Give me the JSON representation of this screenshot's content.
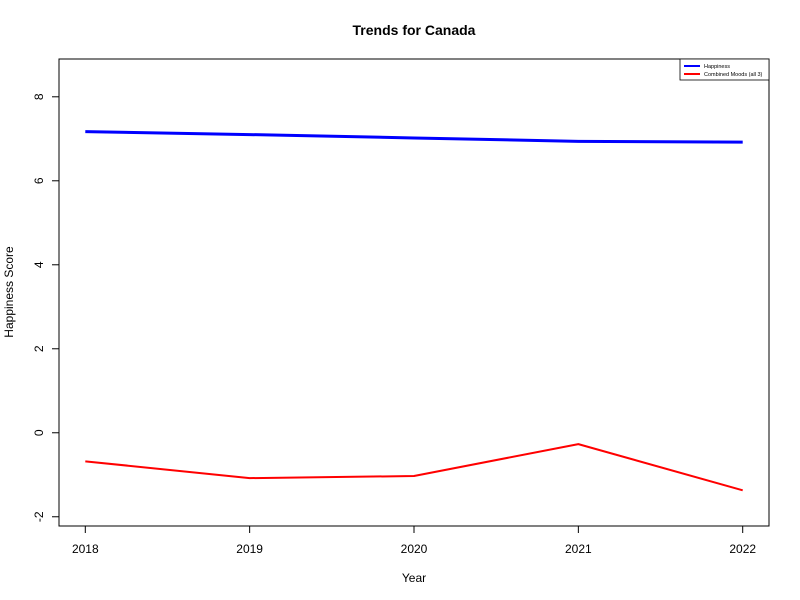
{
  "chart_data": {
    "type": "line",
    "title": "Trends for Canada",
    "xlabel": "Year",
    "ylabel": "Happiness Score",
    "x": [
      2018,
      2019,
      2020,
      2021,
      2022
    ],
    "x_tick_labels": [
      "2018",
      "2019",
      "2020",
      "2021",
      "2022"
    ],
    "y_ticks": [
      -2,
      0,
      2,
      4,
      6,
      8
    ],
    "y_tick_labels": [
      "-2",
      "0",
      "2",
      "4",
      "6",
      "8"
    ],
    "xlim": [
      2017.84,
      2022.16
    ],
    "ylim": [
      -2.22,
      8.9
    ],
    "grid": false,
    "legend_position": "top-right",
    "series": [
      {
        "name": "Happiness",
        "color": "#0000ff",
        "values": [
          7.17,
          7.1,
          7.02,
          6.94,
          6.92
        ]
      },
      {
        "name": "Combined Moods (all 3)",
        "color": "#ff0000",
        "values": [
          -0.68,
          -1.08,
          -1.03,
          -0.27,
          -1.37
        ]
      }
    ]
  }
}
